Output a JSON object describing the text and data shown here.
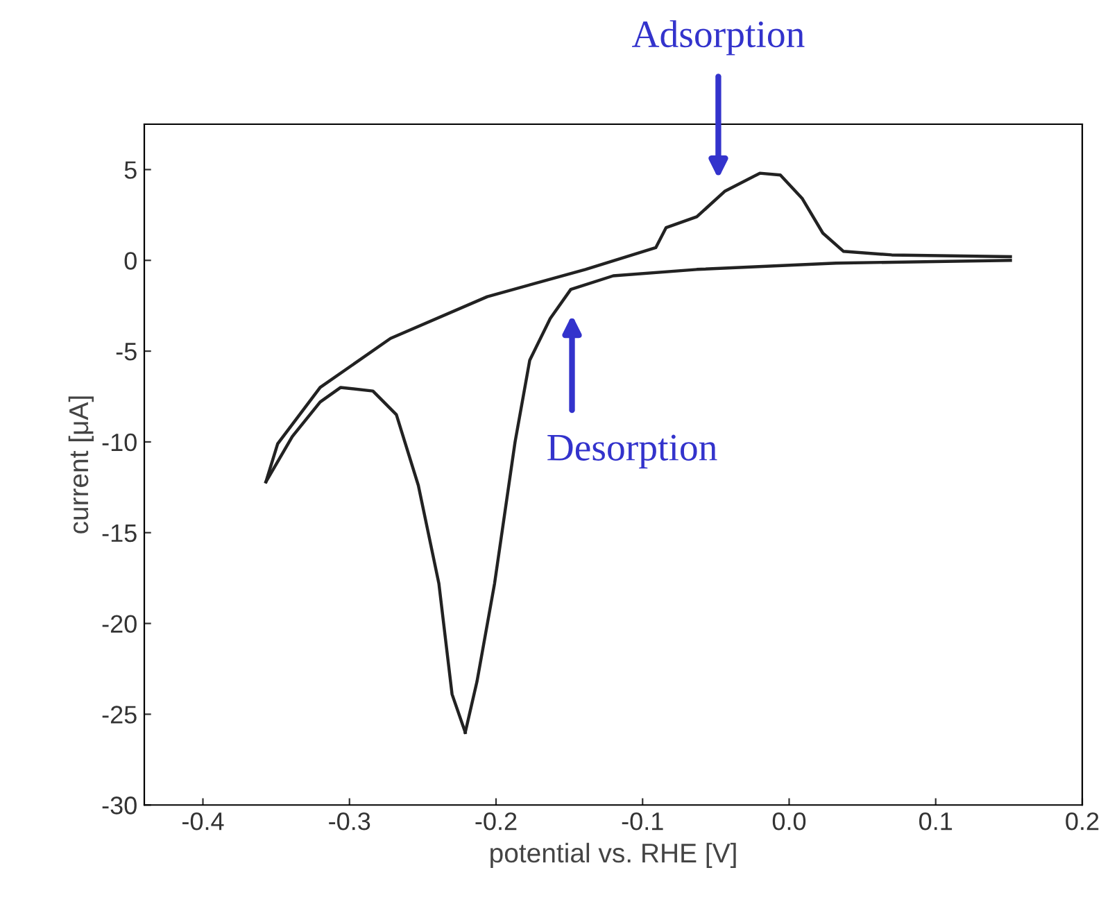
{
  "chart_data": {
    "type": "line",
    "xlabel": "potential vs. RHE [V]",
    "ylabel": "current [μA]",
    "series": [
      {
        "color": "#222222",
        "x": [
          -0.357,
          -0.349,
          -0.32,
          -0.272,
          -0.206,
          -0.139,
          -0.091,
          -0.084,
          -0.063,
          -0.044,
          -0.02,
          -0.006,
          0.009,
          0.023,
          0.037,
          0.07,
          0.151
        ],
        "values": [
          -12.2,
          -10.1,
          -7.0,
          -4.3,
          -2.0,
          -0.5,
          0.7,
          1.8,
          2.4,
          3.8,
          4.8,
          4.7,
          3.4,
          1.5,
          0.5,
          0.3,
          0.2
        ]
      },
      {
        "color": "#222222",
        "x": [
          0.151,
          0.032,
          -0.063,
          -0.12,
          -0.149,
          -0.163,
          -0.177,
          -0.187,
          -0.201,
          -0.213,
          -0.221
        ],
        "values": [
          0.0,
          -0.15,
          -0.5,
          -0.85,
          -1.6,
          -3.2,
          -5.5,
          -10,
          -17.8,
          -23.2,
          -26
        ]
      },
      {
        "color": "#222222",
        "x": [
          -0.221,
          -0.23,
          -0.239,
          -0.253,
          -0.268,
          -0.284,
          -0.306,
          -0.32,
          -0.339,
          -0.357
        ],
        "values": [
          -26,
          -23.9,
          -17.8,
          -12.4,
          -8.5,
          -7.2,
          -7.0,
          -7.8,
          -9.7,
          -12.2
        ]
      }
    ],
    "xlim": [
      -0.44,
      0.2
    ],
    "ylim": [
      -30,
      7.5
    ],
    "xticks": [
      {
        "value": -0.4,
        "label": "-0.4"
      },
      {
        "value": -0.3,
        "label": "-0.3"
      },
      {
        "value": -0.2,
        "label": "-0.2"
      },
      {
        "value": -0.1,
        "label": "-0.1"
      },
      {
        "value": 0.0,
        "label": "0.0"
      },
      {
        "value": 0.1,
        "label": "0.1"
      },
      {
        "value": 0.2,
        "label": "0.2"
      }
    ],
    "yticks": [
      -30,
      -25,
      -20,
      -15,
      -10,
      -5,
      0,
      5
    ],
    "annotations": [
      "Adsorption",
      "Desorption"
    ],
    "grid": false,
    "legend": false,
    "marker": "none",
    "line_style": "solid"
  }
}
